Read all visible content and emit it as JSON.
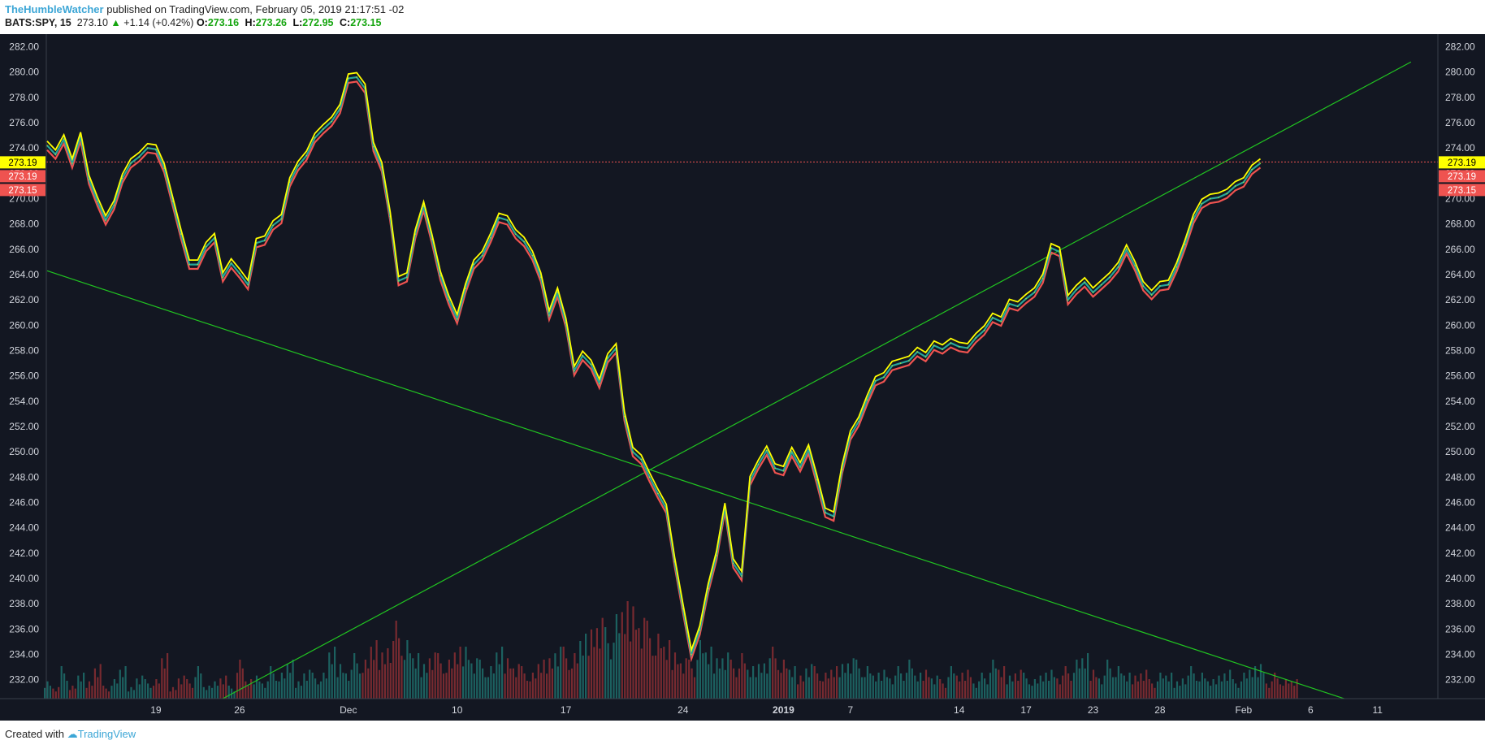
{
  "header": {
    "author": "TheHumbleWatcher",
    "published_text": " published on TradingView.com, February 05, 2019 21:17:51 -02",
    "symbol": "BATS:SPY, 15",
    "last": "273.10",
    "change_arrow": "▲",
    "change": "+1.14 (+0.42%)",
    "o_label": "O:",
    "o": "273.16",
    "h_label": "H:",
    "h": "273.26",
    "l_label": "L:",
    "l": "272.95",
    "c_label": "C:",
    "c": "273.15"
  },
  "footer": {
    "created_text": "Created with",
    "brand": "TradingView"
  },
  "colors": {
    "background": "#131722",
    "trendline": "#21c421",
    "yellow": "#ffff00",
    "red": "#ef5350",
    "teal": "#26a69a",
    "price_line": "#ef5350"
  },
  "chart_data": {
    "type": "line",
    "ylim": [
      230.5,
      283.0
    ],
    "y_ticks": [
      "282.00",
      "280.00",
      "278.00",
      "276.00",
      "274.00",
      "272.00",
      "270.00",
      "268.00",
      "266.00",
      "264.00",
      "262.00",
      "260.00",
      "258.00",
      "256.00",
      "254.00",
      "252.00",
      "250.00",
      "248.00",
      "246.00",
      "244.00",
      "242.00",
      "240.00",
      "238.00",
      "236.00",
      "234.00",
      "232.00"
    ],
    "x_ticks": [
      {
        "label": "19",
        "i": 13
      },
      {
        "label": "26",
        "i": 23
      },
      {
        "label": "Dec",
        "i": 36
      },
      {
        "label": "10",
        "i": 49
      },
      {
        "label": "17",
        "i": 62
      },
      {
        "label": "24",
        "i": 76
      },
      {
        "label": "2019",
        "i": 88,
        "bold": true
      },
      {
        "label": "7",
        "i": 96
      },
      {
        "label": "14",
        "i": 109
      },
      {
        "label": "17",
        "i": 117
      },
      {
        "label": "23",
        "i": 125
      },
      {
        "label": "28",
        "i": 133
      },
      {
        "label": "Feb",
        "i": 143
      },
      {
        "label": "6",
        "i": 151
      },
      {
        "label": "11",
        "i": 159
      }
    ],
    "price_labels": [
      {
        "value": "273.19",
        "color": "#ffff00",
        "text": "#000000"
      },
      {
        "value": "273.19",
        "color": "#ef5350",
        "text": "#ffffff"
      },
      {
        "value": "273.15",
        "color": "#ef5350",
        "text": "#ffffff"
      }
    ],
    "price_line": 272.9,
    "series": [
      {
        "values": [
          274.2,
          273.5,
          274.7,
          272.8,
          274.9,
          271.5,
          269.8,
          268.3,
          269.5,
          271.6,
          272.8,
          273.3,
          274.0,
          273.9,
          272.4,
          269.8,
          267.2,
          264.8,
          264.8,
          266.2,
          266.9,
          263.8,
          264.9,
          264.1,
          263.2,
          266.5,
          266.7,
          267.9,
          268.4,
          271.3,
          272.6,
          273.4,
          274.8,
          275.5,
          276.1,
          277.1,
          279.5,
          279.6,
          278.7,
          274.1,
          272.5,
          268.6,
          263.5,
          263.8,
          267.2,
          269.4,
          266.8,
          263.9,
          262.0,
          260.5,
          262.9,
          264.8,
          265.5,
          266.9,
          268.5,
          268.3,
          267.2,
          266.6,
          265.5,
          263.8,
          260.8,
          262.6,
          260.2,
          256.4,
          257.6,
          256.9,
          255.4,
          257.4,
          258.2,
          252.8,
          250.0,
          249.4,
          248.0,
          246.7,
          245.5,
          241.3,
          237.6,
          234.0,
          235.9,
          239.2,
          241.8,
          245.6,
          241.2,
          240.2,
          247.7,
          249.0,
          250.1,
          248.7,
          248.5,
          250.0,
          248.8,
          250.2,
          247.8,
          245.2,
          244.9,
          248.6,
          251.3,
          252.4,
          254.1,
          255.6,
          255.9,
          256.8,
          257.0,
          257.2,
          257.9,
          257.5,
          258.4,
          258.1,
          258.6,
          258.3,
          258.2,
          259.0,
          259.6,
          260.6,
          260.3,
          261.7,
          261.5,
          262.1,
          262.6,
          263.7,
          266.1,
          265.8,
          262.0,
          262.8,
          263.4,
          262.6,
          263.2,
          263.8,
          264.6,
          266.0,
          264.7,
          263.1,
          262.4,
          263.1,
          263.2,
          264.6,
          266.4,
          268.4,
          269.6,
          270.0,
          270.1,
          270.4,
          271.0,
          271.3,
          272.3,
          272.8
        ],
        "name": ""
      }
    ],
    "volume": [
      3,
      2,
      5,
      2,
      4,
      3,
      6,
      2,
      3,
      5,
      2,
      4,
      3,
      3,
      7,
      2,
      4,
      3,
      5,
      2,
      3,
      4,
      2,
      6,
      3,
      4,
      3,
      5,
      4,
      6,
      3,
      5,
      4,
      4,
      8,
      6,
      5,
      7,
      6,
      9,
      8,
      10,
      12,
      9,
      7,
      6,
      8,
      7,
      6,
      8,
      9,
      7,
      6,
      5,
      8,
      7,
      6,
      5,
      4,
      6,
      7,
      9,
      8,
      7,
      10,
      12,
      14,
      11,
      13,
      15,
      16,
      14,
      12,
      10,
      9,
      8,
      7,
      6,
      9,
      8,
      7,
      8,
      6,
      7,
      5,
      6,
      7,
      8,
      6,
      5,
      4,
      6,
      5,
      4,
      5,
      6,
      7,
      6,
      5,
      4,
      5,
      4,
      5,
      6,
      4,
      5,
      4,
      3,
      5,
      4,
      5,
      3,
      4,
      6,
      5,
      4,
      5,
      4,
      3,
      4,
      5,
      4,
      5,
      6,
      7,
      5,
      4,
      6,
      5,
      4,
      4,
      5,
      3,
      4,
      4,
      3,
      4,
      5,
      4,
      3,
      4,
      5,
      3,
      4,
      5,
      6,
      3,
      4,
      3,
      3
    ],
    "trendlines": [
      {
        "x1": 0,
        "y1": 264.3,
        "x2": 155,
        "y2": 230.5
      },
      {
        "x1": 21,
        "y1": 230.5,
        "x2": 163,
        "y2": 280.8
      }
    ]
  }
}
